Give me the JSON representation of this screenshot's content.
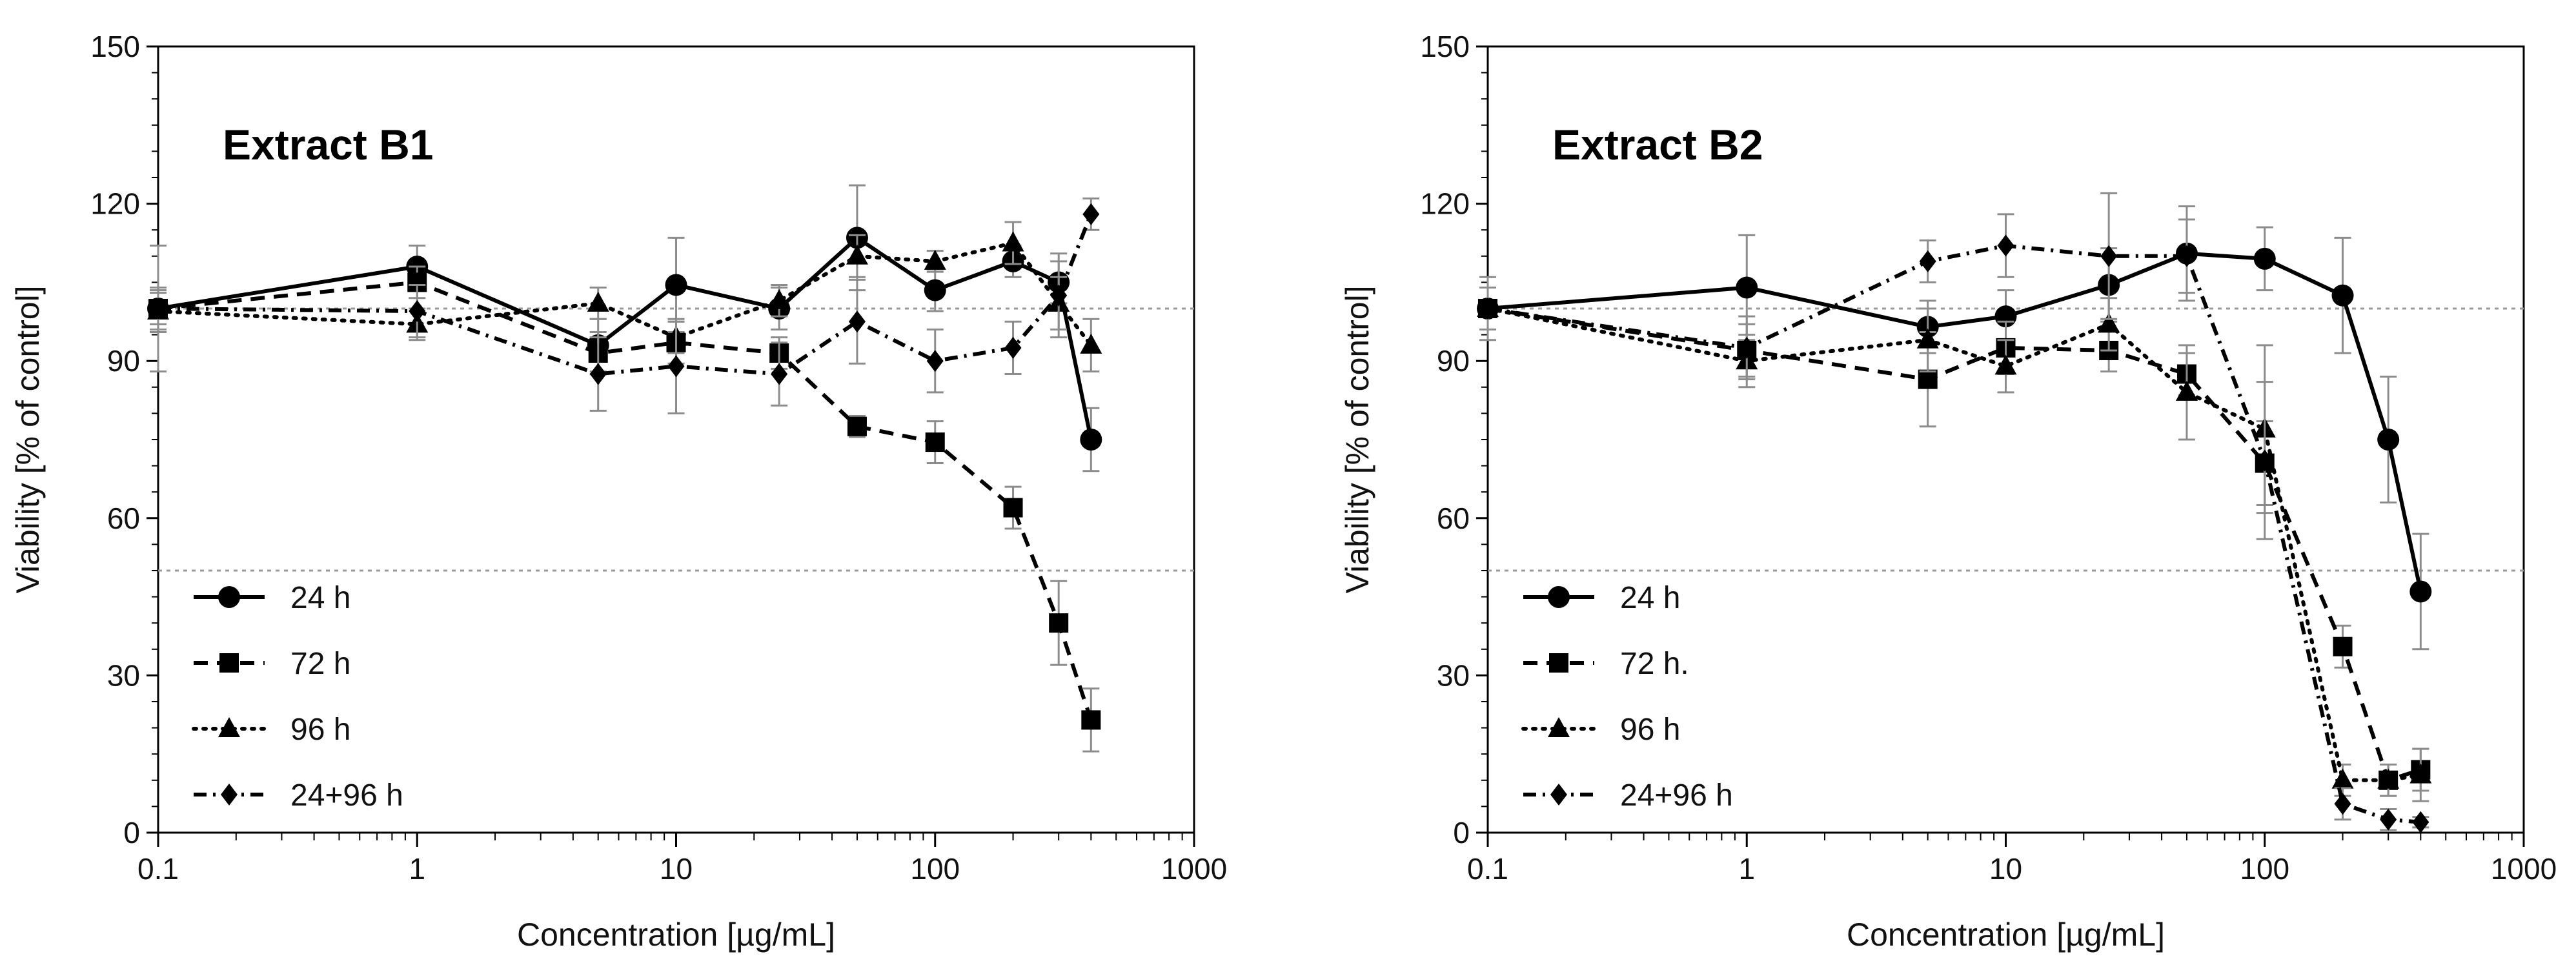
{
  "chart_data": [
    {
      "type": "line",
      "title": "Extract B1",
      "xlabel": "Concentration [µg/mL]",
      "ylabel": "Viability [% of control]",
      "xscale": "log",
      "xlim": [
        0.1,
        1000
      ],
      "ylim": [
        0,
        150
      ],
      "xticks": [
        "0.1",
        "1",
        "10",
        "100",
        "1000"
      ],
      "yticks": [
        "0",
        "30",
        "60",
        "90",
        "120",
        "150"
      ],
      "reference_lines": [
        100,
        50
      ],
      "legend_position": "bottom-left",
      "series": [
        {
          "name": "24 h",
          "marker": "circle",
          "dash": "solid",
          "x": [
            0.1,
            1,
            5,
            10,
            25,
            50,
            100,
            200,
            300,
            400
          ],
          "y": [
            100,
            108,
            93,
            104.5,
            100,
            113.5,
            103.5,
            109,
            105,
            75
          ],
          "err": [
            4,
            4,
            5,
            9,
            4,
            10,
            4,
            3,
            4,
            6
          ]
        },
        {
          "name": "72 h",
          "marker": "square",
          "dash": "dashed",
          "x": [
            0.1,
            1,
            5,
            10,
            25,
            50,
            100,
            200,
            300,
            400
          ],
          "y": [
            100,
            105,
            91.5,
            93.5,
            91.5,
            77.5,
            74.5,
            62,
            40,
            21.5
          ],
          "err": [
            3,
            3,
            4,
            4,
            3,
            2,
            4,
            4,
            8,
            6
          ]
        },
        {
          "name": "96 h",
          "marker": "triangle",
          "dash": "dotted",
          "x": [
            0.1,
            1,
            5,
            10,
            25,
            50,
            100,
            200,
            300,
            400
          ],
          "y": [
            99.5,
            97,
            101,
            94.5,
            101.5,
            110,
            109,
            112.5,
            101,
            93
          ],
          "err": [
            4,
            3,
            3,
            3,
            3,
            4,
            2,
            4,
            5,
            5
          ]
        },
        {
          "name": "24+96 h",
          "marker": "diamond",
          "dash": "dashdot",
          "x": [
            0.1,
            1,
            5,
            10,
            25,
            50,
            100,
            200,
            300,
            400
          ],
          "y": [
            100,
            99.5,
            87.5,
            89,
            87.5,
            97.5,
            90,
            92.5,
            102.5,
            118
          ],
          "err": [
            12,
            5,
            7,
            9,
            6,
            8,
            6,
            5,
            8,
            3
          ]
        }
      ]
    },
    {
      "type": "line",
      "title": "Extract B2",
      "xlabel": "Concentration [µg/mL]",
      "ylabel": "Viability [% of control]",
      "xscale": "log",
      "xlim": [
        0.1,
        1000
      ],
      "ylim": [
        0,
        150
      ],
      "xticks": [
        "0.1",
        "1",
        "10",
        "100",
        "1000"
      ],
      "yticks": [
        "0",
        "30",
        "60",
        "90",
        "120",
        "150"
      ],
      "reference_lines": [
        100,
        50
      ],
      "legend_position": "bottom-left",
      "series": [
        {
          "name": "24 h",
          "marker": "circle",
          "dash": "solid",
          "x": [
            0.1,
            1,
            5,
            10,
            25,
            50,
            100,
            200,
            300,
            400
          ],
          "y": [
            100,
            104,
            96.5,
            98.5,
            104.5,
            110.5,
            109.5,
            102.5,
            75,
            46
          ],
          "err": [
            4,
            10,
            5,
            5,
            7,
            9,
            6,
            11,
            12,
            11
          ]
        },
        {
          "name": "72 h.",
          "marker": "square",
          "dash": "dashed",
          "x": [
            0.1,
            1,
            5,
            10,
            25,
            50,
            100,
            200,
            300,
            400
          ],
          "y": [
            100,
            92,
            86.5,
            92.5,
            92,
            87.5,
            70.5,
            35.5,
            10,
            12
          ],
          "err": [
            4,
            5,
            9,
            5,
            4,
            4,
            8,
            4,
            3,
            4
          ]
        },
        {
          "name": "96 h",
          "marker": "triangle",
          "dash": "dotted",
          "x": [
            0.1,
            1,
            5,
            10,
            25,
            50,
            100,
            200,
            300,
            400
          ],
          "y": [
            100,
            90,
            94,
            89,
            97,
            84,
            77,
            10,
            10,
            11
          ],
          "err": [
            4,
            5,
            6,
            5,
            5,
            9,
            16,
            3,
            3,
            5
          ]
        },
        {
          "name": "24+96 h",
          "marker": "diamond",
          "dash": "dashdot",
          "x": [
            0.1,
            1,
            5,
            10,
            25,
            50,
            100,
            200,
            300,
            400
          ],
          "y": [
            100,
            92.5,
            109,
            112,
            110,
            110,
            71,
            5.5,
            2.5,
            2
          ],
          "err": [
            6,
            6,
            4,
            6,
            12,
            7,
            15,
            3,
            2,
            1
          ]
        }
      ]
    }
  ]
}
